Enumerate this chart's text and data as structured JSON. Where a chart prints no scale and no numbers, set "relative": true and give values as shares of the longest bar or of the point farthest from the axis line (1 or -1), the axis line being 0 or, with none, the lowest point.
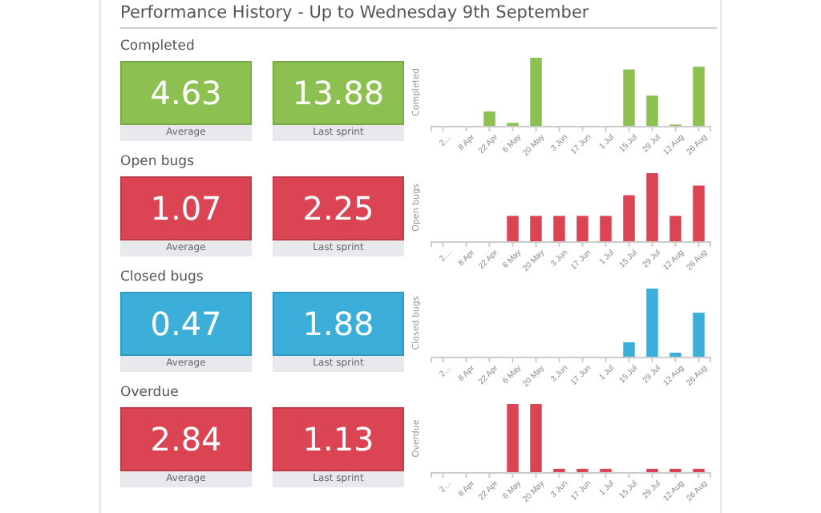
{
  "chart_data": [
    {
      "type": "other",
      "title": "Performance History - Up to Wednesday 9th September"
    },
    {
      "type": "other",
      "title": "Completed",
      "annotations": [
        "4.63",
        "Average",
        "13.88",
        "Last sprint"
      ]
    },
    {
      "type": "bar",
      "ylabel": "Completed",
      "relative": true,
      "color": "#8cc152",
      "categories": [
        "2…",
        "8 Apr",
        "22 Apr",
        "6 May",
        "20 May",
        "3 Jun",
        "17 Jun",
        "1 Jul",
        "15 Jul",
        "29 Jul",
        "12 Aug",
        "26 Aug"
      ],
      "values": [
        0,
        0,
        0.22,
        0.055,
        1,
        0,
        0,
        0,
        0.83,
        0.45,
        0.03,
        0.87
      ]
    },
    {
      "type": "other",
      "title": "Open bugs",
      "annotations": [
        "1.07",
        "Average",
        "2.25",
        "Last sprint"
      ]
    },
    {
      "type": "bar",
      "ylabel": "Open bugs",
      "relative": true,
      "color": "#da4453",
      "categories": [
        "2…",
        "8 Apr",
        "22 Apr",
        "6 May",
        "20 May",
        "3 Jun",
        "17 Jun",
        "1 Jul",
        "15 Jul",
        "29 Jul",
        "12 Aug",
        "26 Aug"
      ],
      "values": [
        0,
        0,
        0,
        0.38,
        0.38,
        0.38,
        0.38,
        0.38,
        0.68,
        1,
        0.38,
        0.82
      ]
    },
    {
      "type": "other",
      "title": "Closed bugs",
      "annotations": [
        "0.47",
        "Average",
        "1.88",
        "Last sprint"
      ]
    },
    {
      "type": "bar",
      "ylabel": "Closed bugs",
      "relative": true,
      "color": "#3bafda",
      "categories": [
        "2…",
        "8 Apr",
        "22 Apr",
        "6 May",
        "20 May",
        "3 Jun",
        "17 Jun",
        "1 Jul",
        "15 Jul",
        "29 Jul",
        "12 Aug",
        "26 Aug"
      ],
      "values": [
        0,
        0,
        0,
        0,
        0,
        0,
        0,
        0,
        0.22,
        1,
        0.07,
        0.65
      ]
    },
    {
      "type": "other",
      "title": "Overdue",
      "annotations": [
        "2.84",
        "Average",
        "1.13",
        "Last sprint"
      ]
    },
    {
      "type": "bar",
      "ylabel": "Overdue",
      "relative": true,
      "color": "#da4453",
      "categories": [
        "2…",
        "8 Apr",
        "22 Apr",
        "6 May",
        "20 May",
        "3 Jun",
        "17 Jun",
        "1 Jul",
        "15 Jul",
        "29 Jul",
        "12 Aug",
        "26 Aug"
      ],
      "values": [
        0,
        0,
        0,
        1,
        1,
        0.06,
        0.06,
        0.06,
        0,
        0.06,
        0.06,
        0.06
      ]
    }
  ]
}
